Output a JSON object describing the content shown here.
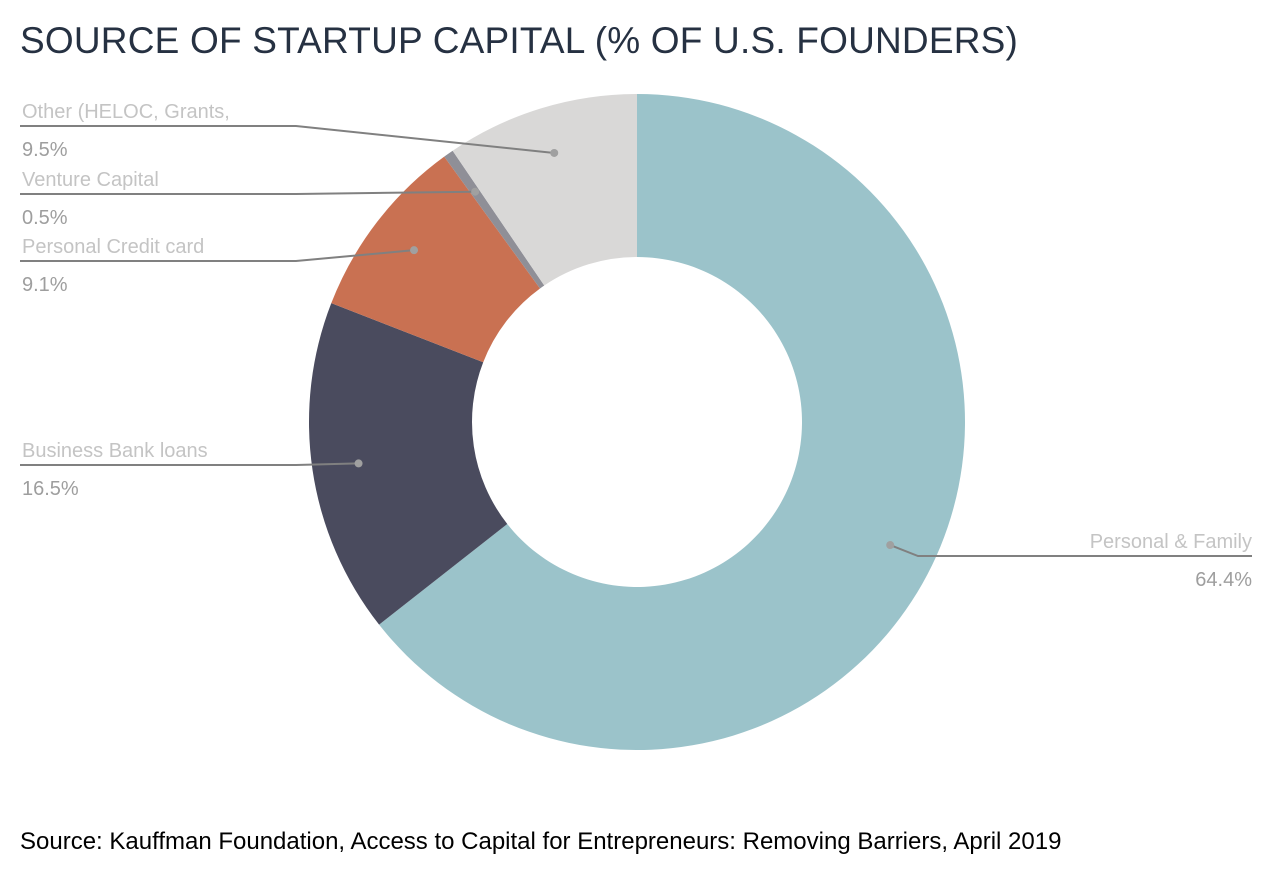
{
  "chart_data": {
    "type": "pie",
    "title": "SOURCE OF STARTUP CAPITAL (% OF U.S. FOUNDERS)",
    "donut": true,
    "slices": [
      {
        "label": "Personal & Family",
        "value": 64.4,
        "value_label": "64.4%",
        "color": "#9bc3ca"
      },
      {
        "label": "Business Bank loans",
        "value": 16.5,
        "value_label": "16.5%",
        "color": "#4a4b5e"
      },
      {
        "label": "Personal Credit card",
        "value": 9.1,
        "value_label": "9.1%",
        "color": "#c97152"
      },
      {
        "label": "Venture Capital",
        "value": 0.5,
        "value_label": "0.5%",
        "color": "#8f8f97"
      },
      {
        "label": "Other (HELOC, Grants,",
        "value": 9.5,
        "value_label": "9.5%",
        "color": "#d9d8d7"
      }
    ],
    "source": "Source: Kauffman Foundation, Access to Capital for Entrepreneurs: Removing Barriers, April 2019"
  }
}
